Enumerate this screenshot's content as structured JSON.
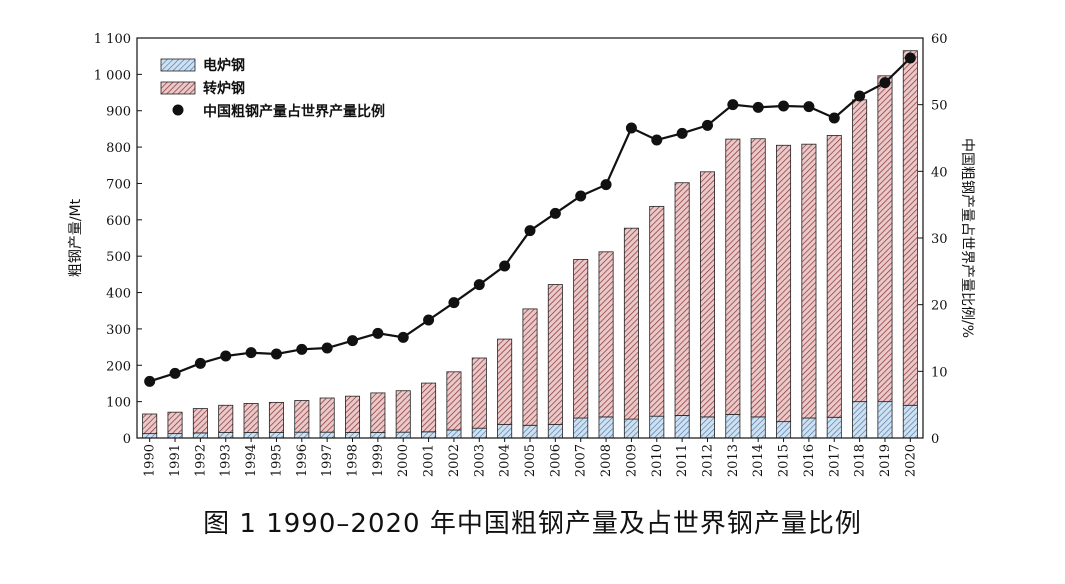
{
  "figure_caption": "图 1   1990–2020 年中国粗钢产量及占世界钢产量比例",
  "chart_data": {
    "type": "bar",
    "stacked": true,
    "categories": [
      "1990",
      "1991",
      "1992",
      "1993",
      "1994",
      "1995",
      "1996",
      "1997",
      "1998",
      "1999",
      "2000",
      "2001",
      "2002",
      "2003",
      "2004",
      "2005",
      "2006",
      "2007",
      "2008",
      "2009",
      "2010",
      "2011",
      "2012",
      "2013",
      "2014",
      "2015",
      "2016",
      "2017",
      "2018",
      "2019",
      "2020"
    ],
    "series": [
      {
        "name": "电炉钢",
        "axis": "left",
        "color": "#8fb3d9",
        "values": [
          12,
          12,
          14,
          15,
          15,
          15,
          16,
          16,
          15,
          15,
          16,
          17,
          22,
          27,
          37,
          35,
          37,
          55,
          58,
          52,
          60,
          62,
          58,
          65,
          58,
          45,
          55,
          57,
          100,
          100,
          90
        ]
      },
      {
        "name": "转炉钢",
        "axis": "left",
        "color": "#c98f8f",
        "values": [
          54,
          59,
          67,
          75,
          80,
          83,
          87,
          94,
          100,
          109,
          114,
          134,
          160,
          193,
          235,
          320,
          385,
          436,
          454,
          525,
          577,
          640,
          674,
          757,
          765,
          760,
          753,
          775,
          830,
          896,
          975
        ]
      },
      {
        "name": "中国粗钢产量占世界产量比例",
        "axis": "right",
        "type": "line",
        "color": "#111111",
        "values": [
          8.5,
          9.7,
          11.2,
          12.3,
          12.8,
          12.6,
          13.3,
          13.5,
          14.6,
          15.7,
          15.1,
          17.7,
          20.3,
          23.0,
          25.8,
          31.1,
          33.7,
          36.3,
          38.0,
          46.5,
          44.7,
          45.7,
          46.9,
          50.0,
          49.6,
          49.8,
          49.7,
          48.0,
          51.3,
          53.3,
          57.0
        ]
      }
    ],
    "ylabel": "粗钢产量/Mt",
    "ylim": [
      0,
      1100
    ],
    "yticks": [
      "0",
      "100",
      "200",
      "300",
      "400",
      "500",
      "600",
      "700",
      "800",
      "900",
      "1 000",
      "1 100"
    ],
    "y2label": "中国粗钢产量占世界产量比例/%",
    "y2lim": [
      0,
      60
    ],
    "y2ticks": [
      "0",
      "10",
      "20",
      "30",
      "40",
      "50",
      "60"
    ],
    "grid": false,
    "legend_position": "top-left"
  }
}
